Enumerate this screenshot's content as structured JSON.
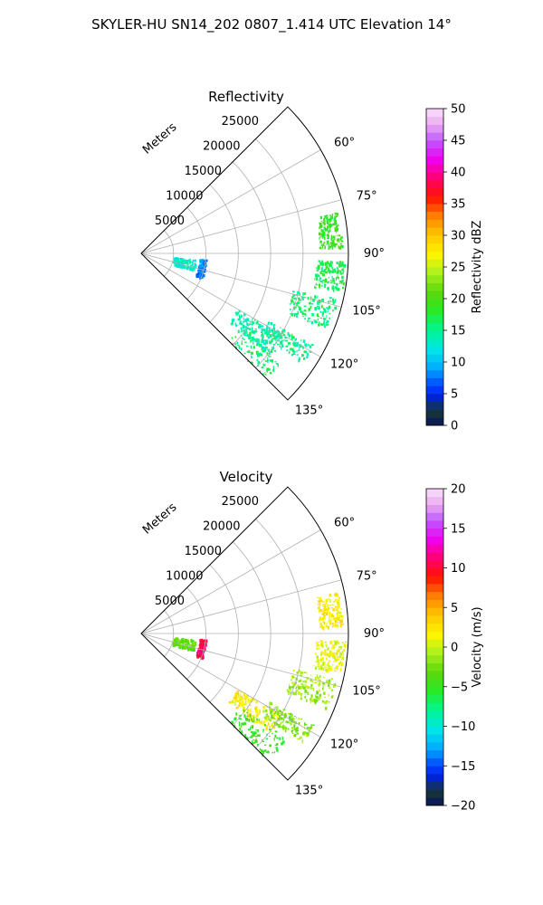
{
  "suptitle": "SKYLER-HU  SN14_202  0807_1.414 UTC Elevation 14°",
  "range_unit_label": "Meters",
  "chart_data": [
    {
      "type": "sector_ppi",
      "title": "Reflectivity",
      "theta_range_deg": [
        45,
        135
      ],
      "theta_ticks": [
        "60°",
        "75°",
        "90°",
        "105°",
        "120°",
        "135°"
      ],
      "theta_tick_values": [
        60,
        75,
        90,
        105,
        120,
        135
      ],
      "r_max": 32000,
      "r_ticks": [
        5000,
        10000,
        15000,
        20000,
        25000
      ],
      "r_tick_labels": [
        "5000",
        "10000",
        "15000",
        "20000",
        "25000"
      ],
      "grid": true,
      "echo_regions": [
        {
          "theta": [
            126,
            138
          ],
          "r": [
            19000,
            27500
          ],
          "value": 16
        },
        {
          "theta": [
            120,
            128
          ],
          "r": [
            17000,
            25000
          ],
          "value": 14
        },
        {
          "theta": [
            118,
            124
          ],
          "r": [
            22000,
            30000
          ],
          "value": 15
        },
        {
          "theta": [
            103,
            112
          ],
          "r": [
            24000,
            31000
          ],
          "value": 16
        },
        {
          "theta": [
            92,
            101
          ],
          "r": [
            27000,
            31500
          ],
          "value": 17
        },
        {
          "theta": [
            78,
            88
          ],
          "r": [
            27500,
            31000
          ],
          "value": 19
        },
        {
          "theta": [
            95,
            112
          ],
          "r": [
            9000,
            10000
          ],
          "value": 8
        },
        {
          "theta": [
            96,
            108
          ],
          "r": [
            5000,
            8500
          ],
          "value": 13
        }
      ],
      "colorbar": {
        "label": "Reflectivity dBZ",
        "min": 0,
        "max": 50,
        "tick_values": [
          0,
          5,
          10,
          15,
          20,
          25,
          30,
          35,
          40,
          45,
          50
        ],
        "tick_labels": [
          "0",
          "5",
          "10",
          "15",
          "20",
          "25",
          "30",
          "35",
          "40",
          "45",
          "50"
        ]
      }
    },
    {
      "type": "sector_ppi",
      "title": "Velocity",
      "theta_range_deg": [
        45,
        135
      ],
      "theta_ticks": [
        "60°",
        "75°",
        "90°",
        "105°",
        "120°",
        "135°"
      ],
      "theta_tick_values": [
        60,
        75,
        90,
        105,
        120,
        135
      ],
      "r_max": 32000,
      "r_ticks": [
        5000,
        10000,
        15000,
        20000,
        25000
      ],
      "r_tick_labels": [
        "5000",
        "10000",
        "15000",
        "20000",
        "25000"
      ],
      "grid": true,
      "echo_regions": [
        {
          "theta": [
            120,
            128
          ],
          "r": [
            17000,
            25000
          ],
          "value": 2
        },
        {
          "theta": [
            126,
            138
          ],
          "r": [
            19000,
            27500
          ],
          "value": -5
        },
        {
          "theta": [
            118,
            124
          ],
          "r": [
            22000,
            30000
          ],
          "value": -2
        },
        {
          "theta": [
            103,
            112
          ],
          "r": [
            24000,
            31000
          ],
          "value": -1
        },
        {
          "theta": [
            92,
            101
          ],
          "r": [
            27000,
            31500
          ],
          "value": 1
        },
        {
          "theta": [
            78,
            88
          ],
          "r": [
            27500,
            31000
          ],
          "value": 2
        },
        {
          "theta": [
            95,
            112
          ],
          "r": [
            9000,
            10000
          ],
          "value": 11
        },
        {
          "theta": [
            96,
            108
          ],
          "r": [
            5000,
            8500
          ],
          "value": -3
        }
      ],
      "colorbar": {
        "label": "Velocity (m/s)",
        "min": -20,
        "max": 20,
        "tick_values": [
          -20,
          -15,
          -10,
          -5,
          0,
          5,
          10,
          15,
          20
        ],
        "tick_labels": [
          "−20",
          "−15",
          "−10",
          "−5",
          "0",
          "5",
          "10",
          "15",
          "20"
        ]
      }
    }
  ]
}
